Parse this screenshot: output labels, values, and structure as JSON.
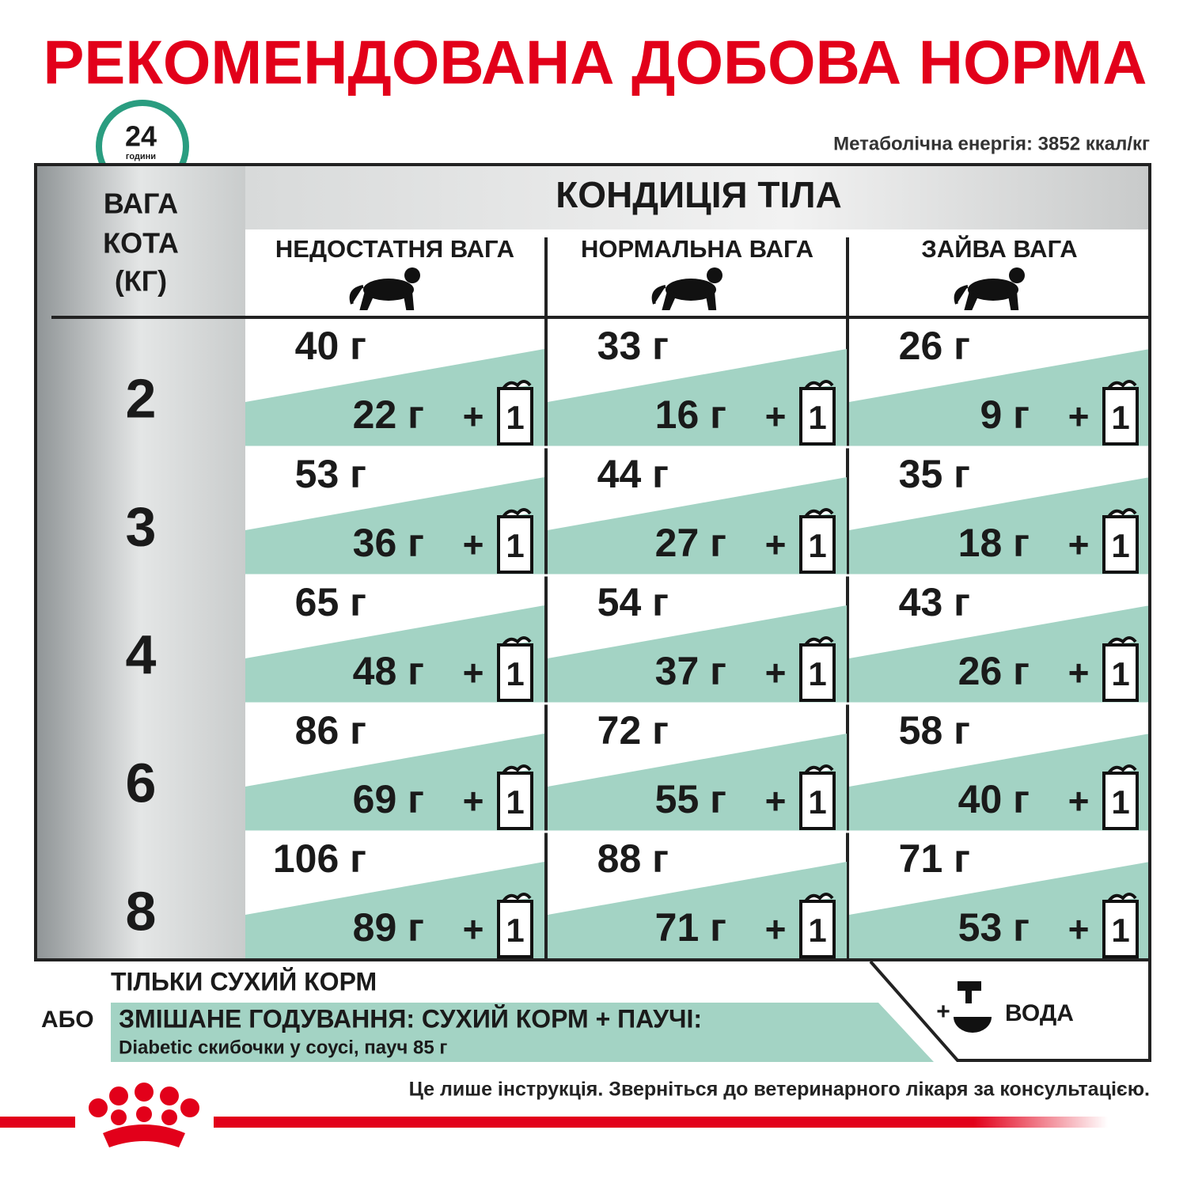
{
  "title": "РЕКОМЕНДОВАНА ДОБОВА НОРМА",
  "clock": {
    "number": "24",
    "label": "години"
  },
  "energy": "Метаболічна енергія: 3852 ккал/кг",
  "table": {
    "weight_header": [
      "ВАГА",
      "КОТА",
      "(КГ)"
    ],
    "condition_header": "КОНДИЦІЯ ТІЛА",
    "columns": [
      "НЕДОСТАТНЯ ВАГА",
      "НОРМАЛЬНА ВАГА",
      "ЗАЙВА ВАГА"
    ],
    "plus": "+",
    "pouch_count": "1",
    "rows": [
      {
        "weight": "2",
        "cells": [
          {
            "dry": "40 г",
            "mixed": "22 г"
          },
          {
            "dry": "33 г",
            "mixed": "16 г"
          },
          {
            "dry": "26 г",
            "mixed": "9 г"
          }
        ]
      },
      {
        "weight": "3",
        "cells": [
          {
            "dry": "53 г",
            "mixed": "36 г"
          },
          {
            "dry": "44 г",
            "mixed": "27 г"
          },
          {
            "dry": "35 г",
            "mixed": "18 г"
          }
        ]
      },
      {
        "weight": "4",
        "cells": [
          {
            "dry": "65 г",
            "mixed": "48 г"
          },
          {
            "dry": "54 г",
            "mixed": "37 г"
          },
          {
            "dry": "43 г",
            "mixed": "26 г"
          }
        ]
      },
      {
        "weight": "6",
        "cells": [
          {
            "dry": "86 г",
            "mixed": "69 г"
          },
          {
            "dry": "72 г",
            "mixed": "55 г"
          },
          {
            "dry": "58 г",
            "mixed": "40 г"
          }
        ]
      },
      {
        "weight": "8",
        "cells": [
          {
            "dry": "106 г",
            "mixed": "89 г"
          },
          {
            "dry": "88 г",
            "mixed": "71 г"
          },
          {
            "dry": "71 г",
            "mixed": "53 г"
          }
        ]
      }
    ]
  },
  "legend": {
    "dry_only": "ТІЛЬКИ СУХИЙ КОРМ",
    "or": "АБО",
    "mixed": "ЗМІШАНЕ ГОДУВАННЯ: СУХИЙ КОРМ + ПАУЧІ:",
    "mixed_detail": "Diabetic скибочки у соусі, пауч 85 г",
    "water_plus": "+",
    "water": "ВОДА"
  },
  "disclaimer": "Це лише інструкція. Зверніться до ветеринарного лікаря за консультацією."
}
